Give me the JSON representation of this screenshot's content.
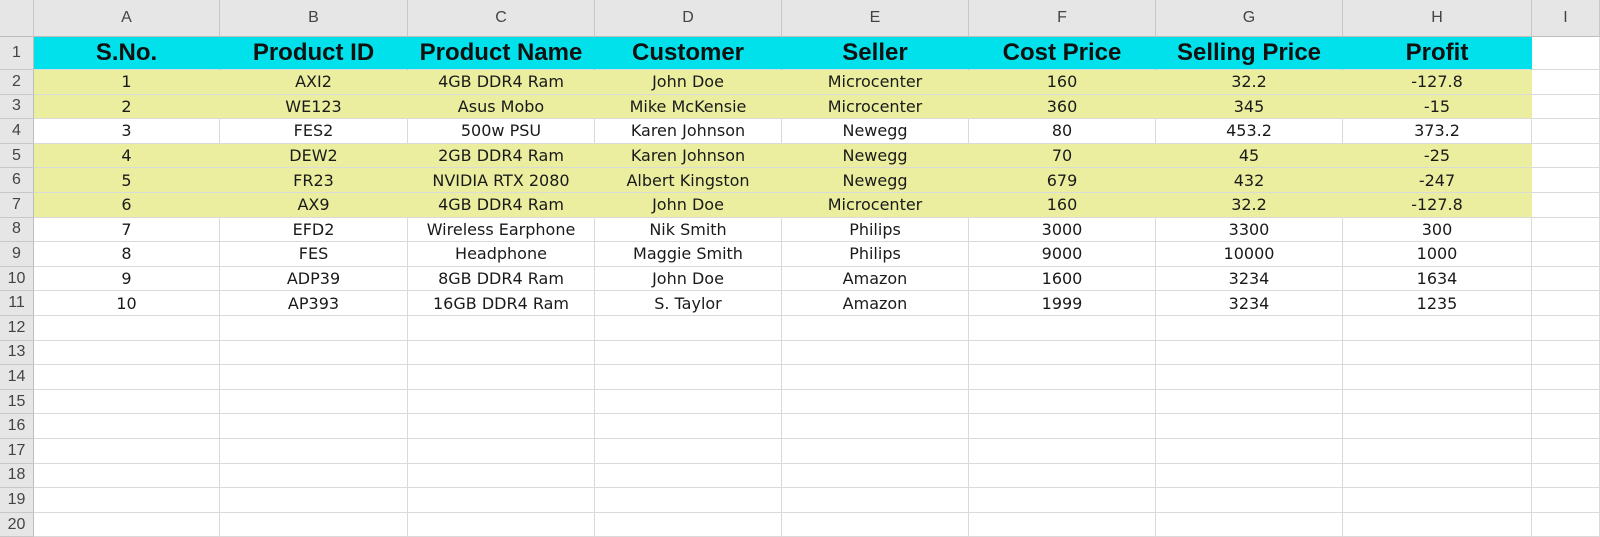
{
  "spreadsheet": {
    "column_letters": [
      "A",
      "B",
      "C",
      "D",
      "E",
      "F",
      "G",
      "H",
      "I"
    ],
    "header_row": [
      "S.No.",
      "Product ID",
      "Product Name",
      "Customer",
      "Seller",
      "Cost Price",
      "Selling Price",
      "Profit"
    ],
    "rows": [
      [
        "1",
        "AXI2",
        "4GB DDR4 Ram",
        "John Doe",
        "Microcenter",
        "160",
        "32.2",
        "-127.8"
      ],
      [
        "2",
        "WE123",
        "Asus Mobo",
        "Mike McKensie",
        "Microcenter",
        "360",
        "345",
        "-15"
      ],
      [
        "3",
        "FES2",
        "500w PSU",
        "Karen Johnson",
        "Newegg",
        "80",
        "453.2",
        "373.2"
      ],
      [
        "4",
        "DEW2",
        "2GB DDR4 Ram",
        "Karen Johnson",
        "Newegg",
        "70",
        "45",
        "-25"
      ],
      [
        "5",
        "FR23",
        "NVIDIA RTX 2080",
        "Albert Kingston",
        "Newegg",
        "679",
        "432",
        "-247"
      ],
      [
        "6",
        "AX9",
        "4GB DDR4 Ram",
        "John Doe",
        "Microcenter",
        "160",
        "32.2",
        "-127.8"
      ],
      [
        "7",
        "EFD2",
        "Wireless Earphone",
        "Nik Smith",
        "Philips",
        "3000",
        "3300",
        "300"
      ],
      [
        "8",
        "FES",
        "Headphone",
        "Maggie Smith",
        "Philips",
        "9000",
        "10000",
        "1000"
      ],
      [
        "9",
        "ADP39",
        "8GB DDR4 Ram",
        "John Doe",
        "Amazon",
        "1600",
        "3234",
        "1634"
      ],
      [
        "10",
        "AP393",
        "16GB DDR4 Ram",
        "S. Taylor",
        "Amazon",
        "1999",
        "3234",
        "1235"
      ]
    ],
    "highlighted_rows": [
      1,
      2,
      4,
      5,
      6
    ],
    "row_numbers": [
      "1",
      "2",
      "3",
      "4",
      "5",
      "6",
      "7",
      "8",
      "9",
      "10",
      "11",
      "12",
      "13",
      "14",
      "15",
      "16",
      "17",
      "18",
      "19",
      "20"
    ]
  },
  "colors": {
    "header_fill": "#00e1ec",
    "highlight_fill": "#eaee9e",
    "grid_line": "#dadada",
    "chrome": "#e6e6e6"
  }
}
